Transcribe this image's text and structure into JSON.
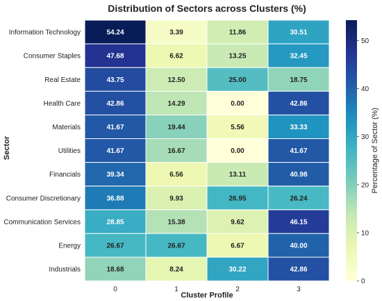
{
  "chart_data": {
    "type": "heatmap",
    "title": "Distribution of Sectors across Clusters (%)",
    "xlabel": "Cluster Profile",
    "ylabel": "Sector",
    "x_categories": [
      "0",
      "1",
      "2",
      "3"
    ],
    "y_categories": [
      "Information Technology",
      "Consumer Staples",
      "Real Estate",
      "Health Care",
      "Materials",
      "Utilities",
      "Financials",
      "Consumer Discretionary",
      "Communication Services",
      "Energy",
      "Industrials"
    ],
    "values": [
      [
        54.24,
        3.39,
        11.86,
        30.51
      ],
      [
        47.68,
        6.62,
        13.25,
        32.45
      ],
      [
        43.75,
        12.5,
        25.0,
        18.75
      ],
      [
        42.86,
        14.29,
        0.0,
        42.86
      ],
      [
        41.67,
        19.44,
        5.56,
        33.33
      ],
      [
        41.67,
        16.67,
        0.0,
        41.67
      ],
      [
        39.34,
        6.56,
        13.11,
        40.98
      ],
      [
        36.88,
        9.93,
        26.95,
        26.24
      ],
      [
        28.85,
        15.38,
        9.62,
        46.15
      ],
      [
        26.67,
        26.67,
        6.67,
        40.0
      ],
      [
        18.68,
        8.24,
        30.22,
        42.86
      ]
    ],
    "value_labels": [
      [
        "54.24",
        "3.39",
        "11.86",
        "30.51"
      ],
      [
        "47.68",
        "6.62",
        "13.25",
        "32.45"
      ],
      [
        "43.75",
        "12.50",
        "25.00",
        "18.75"
      ],
      [
        "42.86",
        "14.29",
        "0.00",
        "42.86"
      ],
      [
        "41.67",
        "19.44",
        "5.56",
        "33.33"
      ],
      [
        "41.67",
        "16.67",
        "0.00",
        "41.67"
      ],
      [
        "39.34",
        "6.56",
        "13.11",
        "40.98"
      ],
      [
        "36.88",
        "9.93",
        "26.95",
        "26.24"
      ],
      [
        "28.85",
        "15.38",
        "9.62",
        "46.15"
      ],
      [
        "26.67",
        "26.67",
        "6.67",
        "40.00"
      ],
      [
        "18.68",
        "8.24",
        "30.22",
        "42.86"
      ]
    ],
    "colormap": "YlGnBu",
    "vmin": 0,
    "vmax": 54.24,
    "colorbar": {
      "label": "Percentage of Sector (%)",
      "ticks": [
        "0",
        "10",
        "20",
        "30",
        "40",
        "50"
      ],
      "position": "right"
    }
  }
}
